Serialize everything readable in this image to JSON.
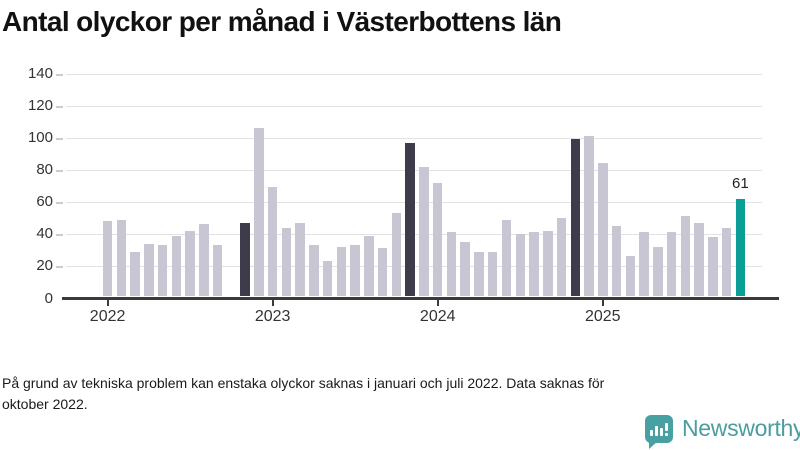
{
  "title": "Antal olyckor per månad i Västerbottens län",
  "footnote_lines": [
    "På grund av tekniska problem kan enstaka olyckor saknas i januari och juli 2022. Data saknas för",
    "oktober 2022."
  ],
  "branding": {
    "name": "Newsworthy"
  },
  "colors": {
    "bar_base": "#c9c6d3",
    "bar_highlight": "#3e3c4b",
    "bar_accent": "#0a9e96",
    "axis": "#3a3a3a",
    "grid": "#e2e2e2",
    "logo": "#47a0a2"
  },
  "chart_data": {
    "type": "bar",
    "title": "Antal olyckor per månad i Västerbottens län",
    "ylim": [
      0,
      140
    ],
    "y_ticks": [
      0,
      20,
      40,
      60,
      80,
      100,
      120,
      140
    ],
    "x_year_ticks": [
      "2022",
      "2023",
      "2024",
      "2025"
    ],
    "grid": true,
    "legend": false,
    "series": [
      {
        "year": 2022,
        "values": [
          47,
          48,
          28,
          33,
          32,
          38,
          41,
          45,
          32,
          null,
          46,
          105
        ]
      },
      {
        "year": 2023,
        "values": [
          68,
          43,
          46,
          32,
          22,
          31,
          32,
          38,
          30,
          52,
          96,
          81
        ]
      },
      {
        "year": 2024,
        "values": [
          71,
          40,
          34,
          28,
          28,
          48,
          39,
          40,
          41,
          49,
          98,
          100
        ]
      },
      {
        "year": 2025,
        "values": [
          83,
          44,
          25,
          40,
          31,
          40,
          50,
          46,
          37,
          43,
          61
        ]
      }
    ],
    "missing_months": [
      "2022-10"
    ],
    "highlight_months": [
      "2022-11",
      "2023-11",
      "2024-11"
    ],
    "accent_month": "2025-11",
    "annotation": {
      "text": "61",
      "month": "2025-11"
    }
  }
}
